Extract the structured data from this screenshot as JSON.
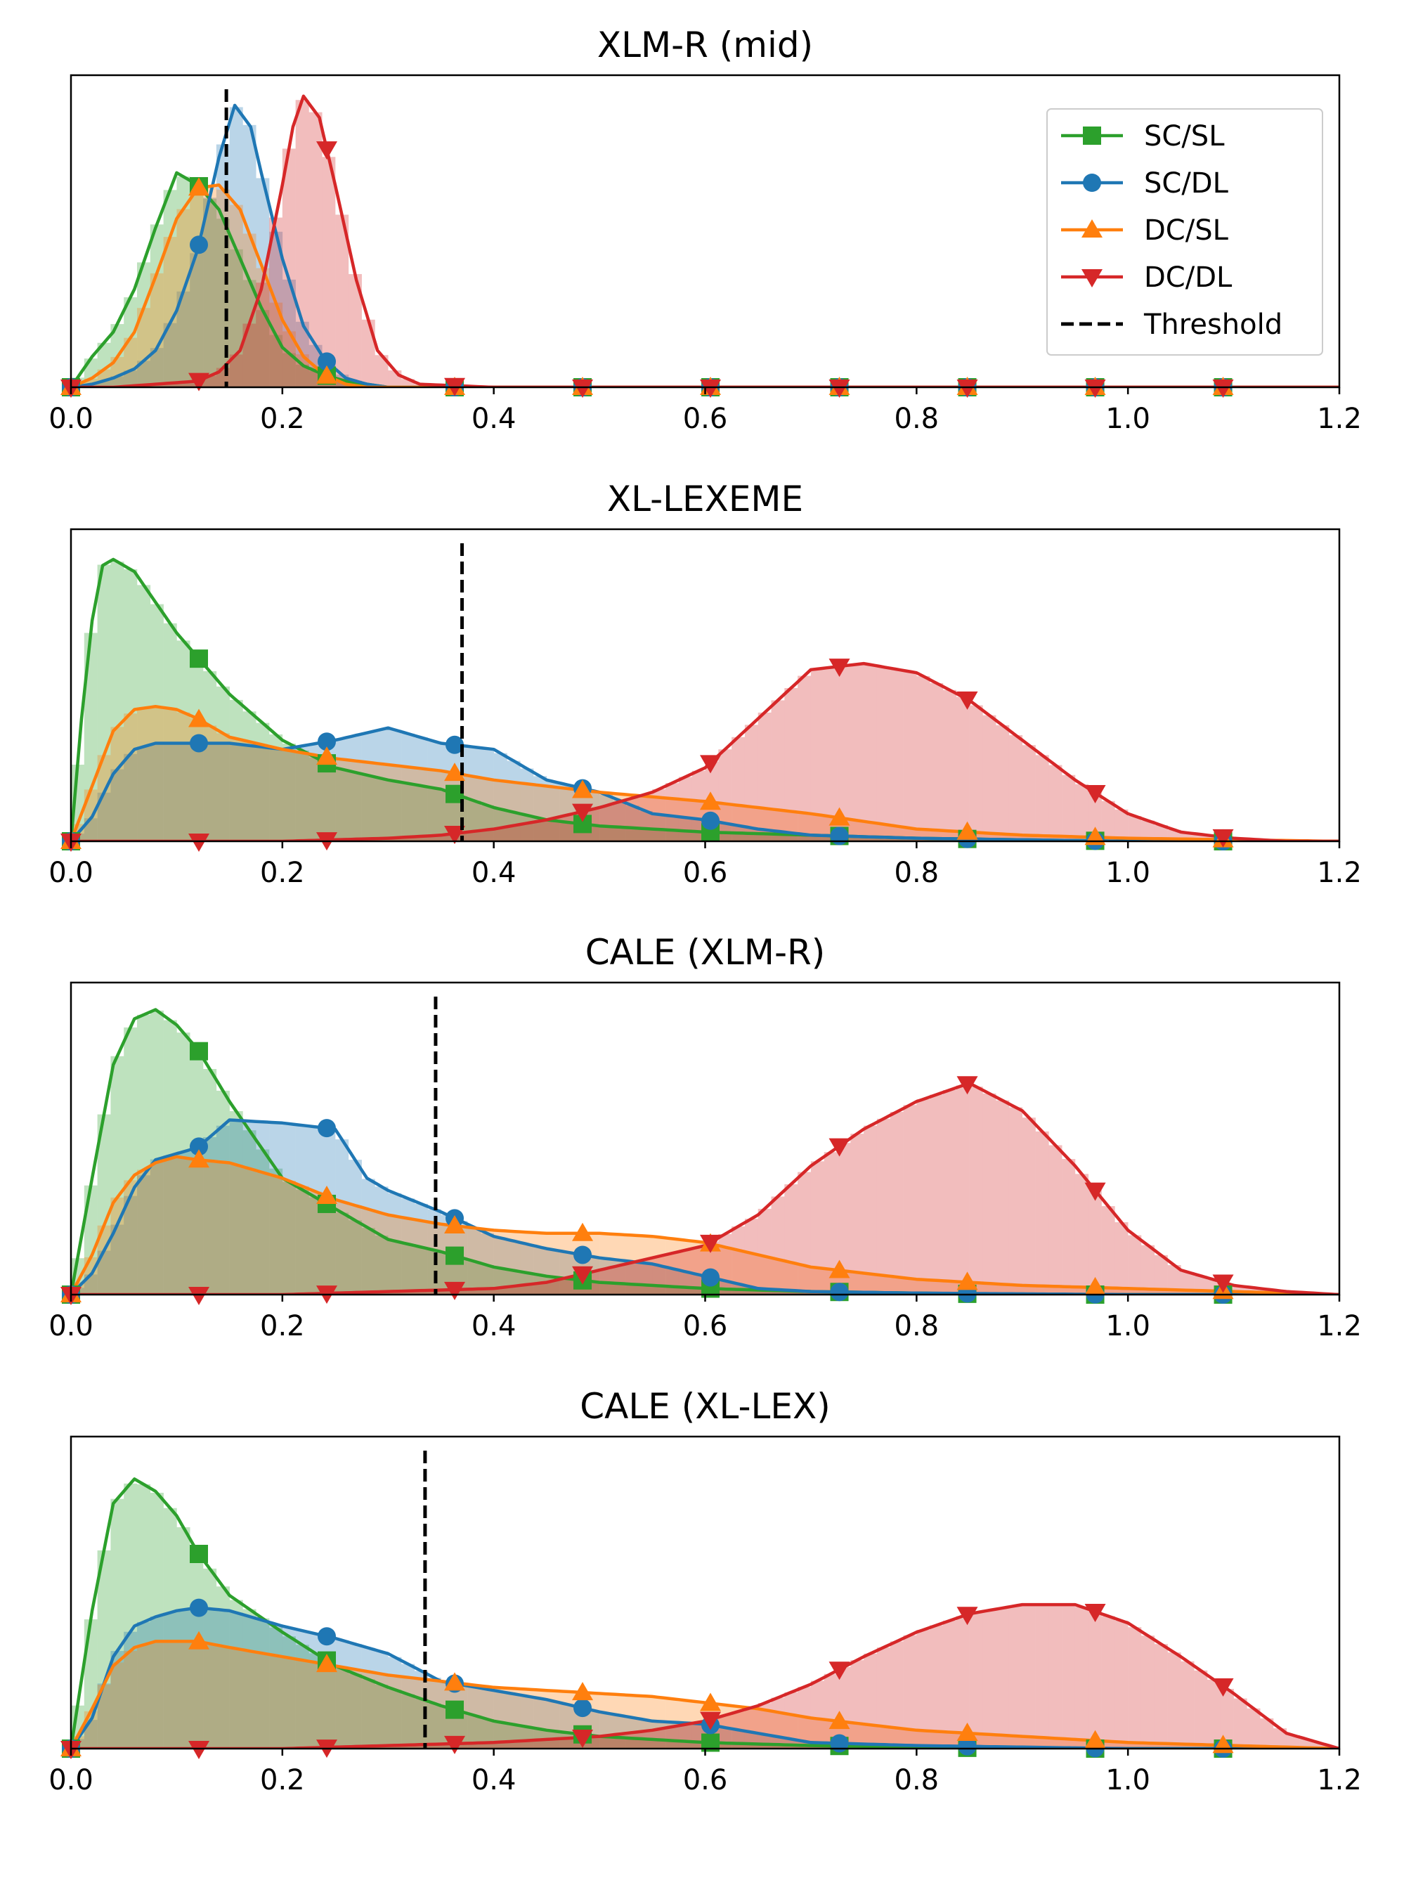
{
  "legend": {
    "location": "upper-right of first panel",
    "entries": [
      {
        "label": "SC/SL",
        "color": "#2ca02c",
        "marker": "square"
      },
      {
        "label": "SC/DL",
        "color": "#1f77b4",
        "marker": "circle"
      },
      {
        "label": "DC/SL",
        "color": "#ff7f0e",
        "marker": "triangle-up"
      },
      {
        "label": "DC/DL",
        "color": "#d62728",
        "marker": "triangle-down"
      },
      {
        "label": "Threshold",
        "color": "#000000",
        "marker": "dashed-line"
      }
    ]
  },
  "chart_data": [
    {
      "type": "area",
      "title": "XLM-R (mid)",
      "xlabel": "",
      "ylabel": "",
      "xlim": [
        0.0,
        1.2
      ],
      "xticks": [
        "0.0",
        "0.2",
        "0.4",
        "0.6",
        "0.8",
        "1.0",
        "1.2"
      ],
      "threshold": 0.147,
      "series": [
        {
          "name": "SC/SL",
          "color": "#2ca02c",
          "marker": "square",
          "x": [
            0.0,
            0.02,
            0.04,
            0.06,
            0.08,
            0.1,
            0.12,
            0.14,
            0.16,
            0.18,
            0.2,
            0.22,
            0.24,
            0.26,
            0.28,
            0.3,
            0.35,
            0.4,
            1.2
          ],
          "y": [
            0.0,
            0.1,
            0.18,
            0.32,
            0.52,
            0.7,
            0.66,
            0.58,
            0.42,
            0.26,
            0.13,
            0.07,
            0.04,
            0.02,
            0.01,
            0.0,
            0.0,
            0.0,
            0.0
          ]
        },
        {
          "name": "SC/DL",
          "color": "#1f77b4",
          "marker": "circle",
          "x": [
            0.0,
            0.02,
            0.04,
            0.06,
            0.08,
            0.1,
            0.12,
            0.14,
            0.155,
            0.17,
            0.18,
            0.2,
            0.22,
            0.24,
            0.26,
            0.28,
            0.3,
            1.2
          ],
          "y": [
            0.0,
            0.01,
            0.03,
            0.06,
            0.12,
            0.25,
            0.45,
            0.75,
            0.92,
            0.85,
            0.7,
            0.42,
            0.2,
            0.09,
            0.03,
            0.01,
            0.0,
            0.0
          ]
        },
        {
          "name": "DC/SL",
          "color": "#ff7f0e",
          "marker": "triangle-up",
          "x": [
            0.0,
            0.02,
            0.04,
            0.06,
            0.08,
            0.1,
            0.12,
            0.14,
            0.16,
            0.18,
            0.2,
            0.22,
            0.24,
            0.26,
            0.28,
            0.3,
            1.2
          ],
          "y": [
            0.0,
            0.03,
            0.08,
            0.18,
            0.36,
            0.55,
            0.65,
            0.66,
            0.58,
            0.4,
            0.22,
            0.1,
            0.04,
            0.01,
            0.0,
            0.0,
            0.0
          ]
        },
        {
          "name": "DC/DL",
          "color": "#d62728",
          "marker": "triangle-down",
          "x": [
            0.0,
            0.04,
            0.08,
            0.12,
            0.14,
            0.16,
            0.18,
            0.2,
            0.21,
            0.22,
            0.235,
            0.25,
            0.27,
            0.29,
            0.31,
            0.33,
            0.4,
            0.6,
            0.8,
            1.0,
            1.2
          ],
          "y": [
            0.0,
            0.0,
            0.01,
            0.02,
            0.05,
            0.12,
            0.32,
            0.66,
            0.85,
            0.95,
            0.88,
            0.66,
            0.35,
            0.12,
            0.04,
            0.01,
            0.0,
            0.0,
            0.0,
            0.0,
            0.0
          ]
        }
      ]
    },
    {
      "type": "area",
      "title": "XL-LEXEME",
      "xlabel": "",
      "ylabel": "",
      "xlim": [
        0.0,
        1.2
      ],
      "xticks": [
        "0.0",
        "0.2",
        "0.4",
        "0.6",
        "0.8",
        "1.0",
        "1.2"
      ],
      "threshold": 0.37,
      "series": [
        {
          "name": "SC/SL",
          "color": "#2ca02c",
          "marker": "square",
          "x": [
            0.0,
            0.01,
            0.02,
            0.03,
            0.04,
            0.06,
            0.08,
            0.1,
            0.12,
            0.15,
            0.2,
            0.25,
            0.3,
            0.35,
            0.4,
            0.45,
            0.5,
            0.6,
            0.7,
            0.8,
            0.9,
            1.0,
            1.2
          ],
          "y": [
            0.0,
            0.4,
            0.72,
            0.9,
            0.92,
            0.88,
            0.78,
            0.68,
            0.6,
            0.48,
            0.33,
            0.24,
            0.2,
            0.17,
            0.11,
            0.07,
            0.05,
            0.03,
            0.02,
            0.01,
            0.005,
            0.0,
            0.0
          ]
        },
        {
          "name": "SC/DL",
          "color": "#1f77b4",
          "marker": "circle",
          "x": [
            0.0,
            0.02,
            0.04,
            0.06,
            0.08,
            0.1,
            0.12,
            0.15,
            0.2,
            0.25,
            0.3,
            0.35,
            0.4,
            0.45,
            0.5,
            0.55,
            0.6,
            0.65,
            0.7,
            0.8,
            0.9,
            1.0,
            1.2
          ],
          "y": [
            0.0,
            0.08,
            0.22,
            0.3,
            0.32,
            0.32,
            0.32,
            0.32,
            0.3,
            0.33,
            0.37,
            0.32,
            0.3,
            0.2,
            0.16,
            0.09,
            0.07,
            0.04,
            0.02,
            0.01,
            0.005,
            0.0,
            0.0
          ]
        },
        {
          "name": "DC/SL",
          "color": "#ff7f0e",
          "marker": "triangle-up",
          "x": [
            0.0,
            0.02,
            0.04,
            0.06,
            0.08,
            0.1,
            0.12,
            0.15,
            0.2,
            0.25,
            0.3,
            0.35,
            0.4,
            0.45,
            0.5,
            0.6,
            0.7,
            0.8,
            0.9,
            1.0,
            1.2
          ],
          "y": [
            0.0,
            0.18,
            0.36,
            0.43,
            0.44,
            0.43,
            0.4,
            0.34,
            0.3,
            0.27,
            0.25,
            0.23,
            0.2,
            0.18,
            0.16,
            0.13,
            0.09,
            0.04,
            0.02,
            0.01,
            0.0
          ]
        },
        {
          "name": "DC/DL",
          "color": "#d62728",
          "marker": "triangle-down",
          "x": [
            0.0,
            0.1,
            0.2,
            0.3,
            0.35,
            0.4,
            0.45,
            0.5,
            0.55,
            0.6,
            0.65,
            0.7,
            0.75,
            0.8,
            0.85,
            0.9,
            0.95,
            1.0,
            1.05,
            1.1,
            1.15,
            1.2
          ],
          "y": [
            0.0,
            0.0,
            0.0,
            0.01,
            0.02,
            0.04,
            0.07,
            0.11,
            0.16,
            0.24,
            0.4,
            0.56,
            0.58,
            0.55,
            0.46,
            0.33,
            0.2,
            0.09,
            0.03,
            0.01,
            0.0,
            0.0
          ]
        }
      ]
    },
    {
      "type": "area",
      "title": "CALE (XLM-R)",
      "xlabel": "",
      "ylabel": "",
      "xlim": [
        0.0,
        1.2
      ],
      "xticks": [
        "0.0",
        "0.2",
        "0.4",
        "0.6",
        "0.8",
        "1.0",
        "1.2"
      ],
      "threshold": 0.345,
      "series": [
        {
          "name": "SC/SL",
          "color": "#2ca02c",
          "marker": "square",
          "x": [
            0.0,
            0.02,
            0.04,
            0.06,
            0.08,
            0.1,
            0.12,
            0.15,
            0.2,
            0.25,
            0.3,
            0.35,
            0.4,
            0.45,
            0.5,
            0.6,
            0.7,
            0.8,
            0.9,
            1.0,
            1.2
          ],
          "y": [
            0.0,
            0.38,
            0.75,
            0.9,
            0.93,
            0.88,
            0.8,
            0.63,
            0.38,
            0.28,
            0.18,
            0.14,
            0.09,
            0.06,
            0.04,
            0.02,
            0.01,
            0.005,
            0.0,
            0.0,
            0.0
          ]
        },
        {
          "name": "SC/DL",
          "color": "#1f77b4",
          "marker": "circle",
          "x": [
            0.0,
            0.02,
            0.04,
            0.06,
            0.08,
            0.1,
            0.12,
            0.15,
            0.2,
            0.25,
            0.28,
            0.3,
            0.35,
            0.4,
            0.45,
            0.5,
            0.55,
            0.6,
            0.65,
            0.7,
            0.8,
            1.0,
            1.2
          ],
          "y": [
            0.0,
            0.07,
            0.2,
            0.35,
            0.44,
            0.46,
            0.48,
            0.57,
            0.56,
            0.54,
            0.38,
            0.34,
            0.27,
            0.19,
            0.15,
            0.12,
            0.1,
            0.06,
            0.02,
            0.01,
            0.005,
            0.0,
            0.0
          ]
        },
        {
          "name": "DC/SL",
          "color": "#ff7f0e",
          "marker": "triangle-up",
          "x": [
            0.0,
            0.02,
            0.04,
            0.06,
            0.08,
            0.1,
            0.12,
            0.15,
            0.2,
            0.25,
            0.3,
            0.35,
            0.4,
            0.45,
            0.5,
            0.55,
            0.6,
            0.65,
            0.7,
            0.8,
            0.9,
            1.0,
            1.1,
            1.2
          ],
          "y": [
            0.0,
            0.13,
            0.3,
            0.39,
            0.43,
            0.45,
            0.44,
            0.43,
            0.38,
            0.31,
            0.26,
            0.23,
            0.21,
            0.2,
            0.2,
            0.19,
            0.17,
            0.13,
            0.09,
            0.05,
            0.03,
            0.02,
            0.01,
            0.0
          ]
        },
        {
          "name": "DC/DL",
          "color": "#d62728",
          "marker": "triangle-down",
          "x": [
            0.0,
            0.1,
            0.2,
            0.3,
            0.4,
            0.45,
            0.5,
            0.55,
            0.6,
            0.65,
            0.7,
            0.75,
            0.8,
            0.85,
            0.9,
            0.95,
            1.0,
            1.05,
            1.1,
            1.15,
            1.2
          ],
          "y": [
            0.0,
            0.0,
            0.0,
            0.01,
            0.02,
            0.04,
            0.08,
            0.12,
            0.16,
            0.26,
            0.42,
            0.54,
            0.63,
            0.69,
            0.6,
            0.42,
            0.21,
            0.08,
            0.03,
            0.01,
            0.0
          ]
        }
      ]
    },
    {
      "type": "area",
      "title": "CALE (XL-LEX)",
      "xlabel": "",
      "ylabel": "",
      "xlim": [
        0.0,
        1.2
      ],
      "xticks": [
        "0.0",
        "0.2",
        "0.4",
        "0.6",
        "0.8",
        "1.0",
        "1.2"
      ],
      "threshold": 0.335,
      "series": [
        {
          "name": "SC/SL",
          "color": "#2ca02c",
          "marker": "square",
          "x": [
            0.0,
            0.02,
            0.04,
            0.06,
            0.08,
            0.1,
            0.12,
            0.15,
            0.2,
            0.25,
            0.3,
            0.35,
            0.4,
            0.45,
            0.5,
            0.6,
            0.7,
            0.8,
            0.9,
            1.0,
            1.2
          ],
          "y": [
            0.0,
            0.45,
            0.8,
            0.88,
            0.84,
            0.76,
            0.64,
            0.5,
            0.38,
            0.27,
            0.2,
            0.14,
            0.09,
            0.06,
            0.04,
            0.02,
            0.01,
            0.005,
            0.0,
            0.0,
            0.0
          ]
        },
        {
          "name": "SC/DL",
          "color": "#1f77b4",
          "marker": "circle",
          "x": [
            0.0,
            0.02,
            0.04,
            0.06,
            0.08,
            0.1,
            0.12,
            0.15,
            0.2,
            0.25,
            0.3,
            0.35,
            0.4,
            0.45,
            0.5,
            0.55,
            0.6,
            0.65,
            0.7,
            0.8,
            0.9,
            1.0,
            1.2
          ],
          "y": [
            0.0,
            0.1,
            0.3,
            0.4,
            0.43,
            0.45,
            0.46,
            0.45,
            0.4,
            0.36,
            0.31,
            0.22,
            0.19,
            0.16,
            0.12,
            0.09,
            0.08,
            0.05,
            0.02,
            0.01,
            0.005,
            0.0,
            0.0
          ]
        },
        {
          "name": "DC/SL",
          "color": "#ff7f0e",
          "marker": "triangle-up",
          "x": [
            0.0,
            0.02,
            0.04,
            0.06,
            0.08,
            0.1,
            0.12,
            0.15,
            0.2,
            0.25,
            0.3,
            0.35,
            0.4,
            0.45,
            0.5,
            0.55,
            0.6,
            0.65,
            0.7,
            0.8,
            0.9,
            1.0,
            1.1,
            1.2
          ],
          "y": [
            0.0,
            0.13,
            0.27,
            0.33,
            0.35,
            0.35,
            0.35,
            0.33,
            0.3,
            0.27,
            0.24,
            0.22,
            0.2,
            0.19,
            0.18,
            0.17,
            0.15,
            0.13,
            0.1,
            0.06,
            0.04,
            0.02,
            0.01,
            0.0
          ]
        },
        {
          "name": "DC/DL",
          "color": "#d62728",
          "marker": "triangle-down",
          "x": [
            0.0,
            0.1,
            0.2,
            0.3,
            0.4,
            0.5,
            0.55,
            0.6,
            0.65,
            0.7,
            0.75,
            0.8,
            0.85,
            0.9,
            0.95,
            1.0,
            1.05,
            1.1,
            1.15,
            1.2
          ],
          "y": [
            0.0,
            0.0,
            0.0,
            0.01,
            0.02,
            0.04,
            0.06,
            0.09,
            0.14,
            0.21,
            0.3,
            0.38,
            0.44,
            0.47,
            0.47,
            0.41,
            0.3,
            0.18,
            0.05,
            0.0
          ]
        }
      ]
    }
  ]
}
